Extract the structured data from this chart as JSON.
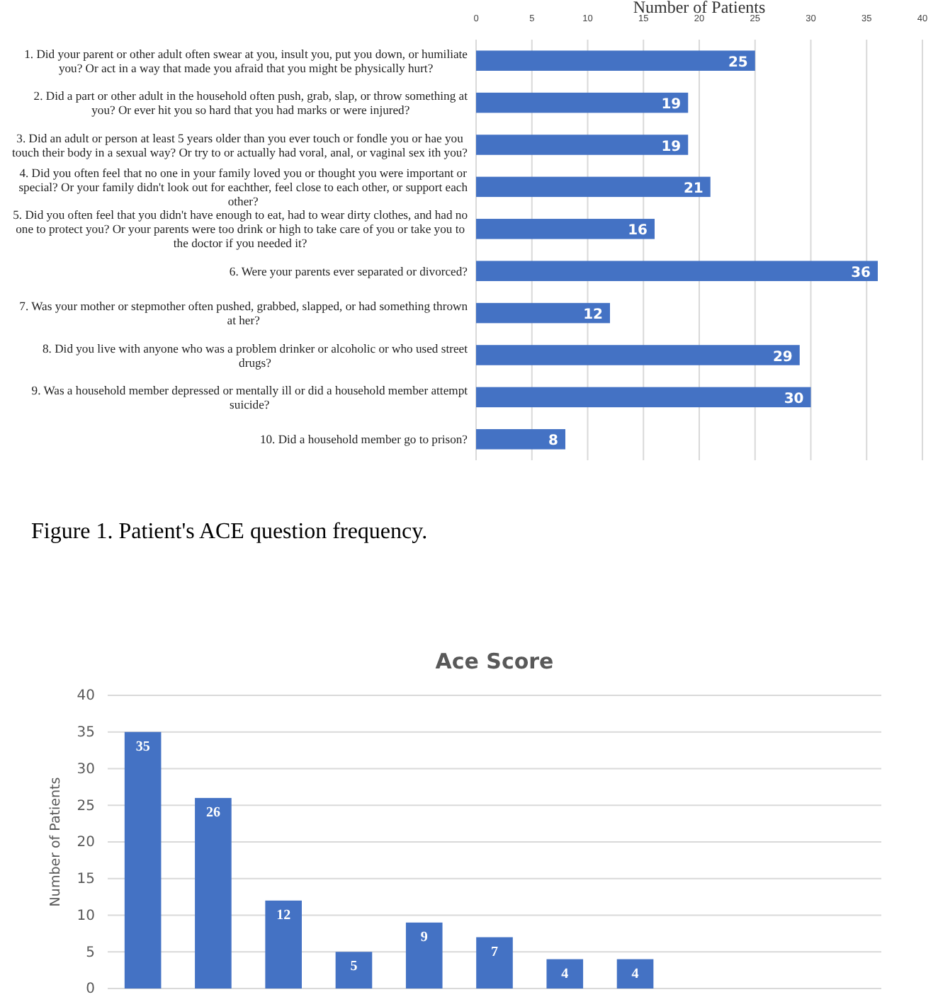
{
  "chart_data": [
    {
      "type": "bar",
      "orientation": "horizontal",
      "xlabel": "Number of Patients",
      "categories": [
        "1. Did your parent or other adult often swear at you, insult you, put you down, or humiliate you? Or act in a way that made you afraid that you might be physically hurt?",
        "2. Did a part or other adult in the household often push, grab, slap, or throw something at you? Or ever hit you so hard that you had marks or were injured?",
        "3. Did an adult or person at least 5 years older than you ever touch or fondle you or hae you touch their body in a sexual way? Or try to or actually had voral, anal, or vaginal sex ith you?",
        "4. Did you often feel that no one in your family loved you or thought you were important or special? Or your family didn't look out for eachther, feel close to each other, or support each other?",
        "5. Did you often feel that you didn't have enough to eat, had to wear dirty clothes, and had no one to protect you? Or your parents were too drink or high to take care of you or take you to the doctor if you needed it?",
        "6. Were your parents ever separated or divorced?",
        "7. Was your mother or stepmother often pushed, grabbed, slapped, or had something thrown at her?",
        "8. Did you live with anyone who was a problem drinker or alcoholic or who used street drugs?",
        "9. Was a household member depressed or mentally ill or did a household member attempt suicide?",
        "10. Did a household member go to prison?"
      ],
      "values": [
        25,
        19,
        19,
        21,
        16,
        36,
        12,
        29,
        30,
        8
      ],
      "color": "#4472c4",
      "xlim": [
        0,
        40
      ],
      "xticks": [
        0,
        5,
        10,
        15,
        20,
        25,
        30,
        35,
        40
      ],
      "grid": "x",
      "data_labels": true,
      "annotations": [
        "Figure 1. Patient's ACE question frequency."
      ]
    },
    {
      "type": "bar",
      "title": "Ace Score",
      "ylabel": "Number of Patients",
      "categories": [
        null,
        null,
        null,
        null,
        null,
        null,
        null,
        null,
        null,
        null,
        null
      ],
      "values": [
        35,
        26,
        12,
        5,
        9,
        7,
        4,
        4,
        null,
        null,
        null
      ],
      "color": "#4472c4",
      "ylim": [
        0,
        40
      ],
      "yticks": [
        0,
        5,
        10,
        15,
        20,
        25,
        30,
        35,
        40
      ],
      "grid": "y",
      "data_labels": true
    }
  ]
}
